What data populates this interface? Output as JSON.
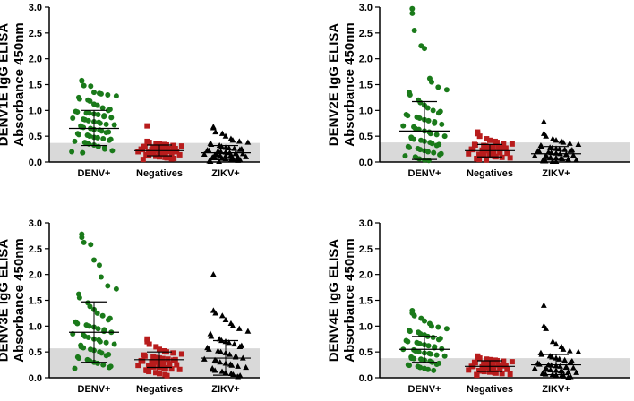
{
  "figure": {
    "panels_note": "Four dot plots: DENV1E-DENV4E IgG ELISA absorbance by group"
  },
  "colors": {
    "DENV+": "#1a7a1a",
    "Negatives": "#b81c1c",
    "ZIKV+": "#000000",
    "cutoff_band": "#d9d9d9"
  },
  "chart_data": [
    {
      "type": "scatter",
      "title": "",
      "ylabel": [
        "DENV1E IgG ELISA",
        "Absorbance 450nm"
      ],
      "ylim": [
        0,
        3.0
      ],
      "yticks": [
        "0.0",
        "0.5",
        "1.0",
        "1.5",
        "2.0",
        "2.5",
        "3.0"
      ],
      "categories": [
        "DENV+",
        "Negatives",
        "ZIKV+"
      ],
      "cutoff": 0.37,
      "series": [
        {
          "name": "DENV+",
          "marker": "circle",
          "mean": 0.65,
          "sd_upper": 1.0,
          "sd_lower": 0.32,
          "values": [
            1.58,
            1.57,
            1.48,
            1.47,
            1.35,
            1.33,
            1.32,
            1.3,
            1.28,
            1.25,
            1.22,
            1.2,
            1.18,
            1.12,
            1.1,
            1.05,
            1.02,
            1.0,
            0.98,
            0.97,
            0.95,
            0.95,
            0.93,
            0.92,
            0.9,
            0.88,
            0.86,
            0.85,
            0.83,
            0.82,
            0.8,
            0.78,
            0.77,
            0.75,
            0.73,
            0.72,
            0.7,
            0.68,
            0.67,
            0.65,
            0.63,
            0.62,
            0.6,
            0.58,
            0.57,
            0.55,
            0.53,
            0.52,
            0.5,
            0.48,
            0.47,
            0.45,
            0.44,
            0.42,
            0.4,
            0.38,
            0.37,
            0.35,
            0.33,
            0.3,
            0.28,
            0.25,
            0.22,
            0.2,
            0.18
          ]
        },
        {
          "name": "Negatives",
          "marker": "square",
          "mean": 0.22,
          "sd_upper": 0.33,
          "sd_lower": 0.12,
          "values": [
            0.7,
            0.4,
            0.38,
            0.36,
            0.35,
            0.34,
            0.33,
            0.32,
            0.31,
            0.3,
            0.3,
            0.29,
            0.28,
            0.28,
            0.27,
            0.26,
            0.26,
            0.25,
            0.25,
            0.24,
            0.24,
            0.23,
            0.22,
            0.22,
            0.21,
            0.21,
            0.2,
            0.2,
            0.19,
            0.18,
            0.18,
            0.17,
            0.16,
            0.16,
            0.15,
            0.14,
            0.14,
            0.13,
            0.12,
            0.11,
            0.1,
            0.09,
            0.08,
            0.07,
            0.06,
            0.05
          ]
        },
        {
          "name": "ZIKV+",
          "marker": "triangle",
          "mean": 0.18,
          "sd_upper": 0.32,
          "sd_lower": 0.05,
          "values": [
            0.68,
            0.66,
            0.58,
            0.55,
            0.5,
            0.45,
            0.42,
            0.4,
            0.38,
            0.36,
            0.34,
            0.32,
            0.3,
            0.28,
            0.27,
            0.26,
            0.25,
            0.24,
            0.23,
            0.22,
            0.21,
            0.2,
            0.19,
            0.18,
            0.17,
            0.16,
            0.16,
            0.15,
            0.14,
            0.14,
            0.13,
            0.12,
            0.12,
            0.11,
            0.1,
            0.1,
            0.09,
            0.08,
            0.08,
            0.07,
            0.06,
            0.05,
            0.05,
            0.04,
            0.03,
            0.02,
            0.01,
            0.01
          ]
        }
      ]
    },
    {
      "type": "scatter",
      "title": "",
      "ylabel": [
        "DENV2E IgG ELISA",
        "Absorbance 450nm"
      ],
      "ylim": [
        0,
        3.0
      ],
      "yticks": [
        "0.0",
        "0.5",
        "1.0",
        "1.5",
        "2.0",
        "2.5",
        "3.0"
      ],
      "categories": [
        "DENV+",
        "Negatives",
        "ZIKV+"
      ],
      "cutoff": 0.38,
      "series": [
        {
          "name": "DENV+",
          "marker": "circle",
          "mean": 0.6,
          "sd_upper": 1.17,
          "sd_lower": 0.05,
          "values": [
            2.97,
            2.88,
            2.55,
            2.25,
            2.2,
            1.62,
            1.55,
            1.45,
            1.4,
            1.35,
            1.3,
            1.2,
            1.15,
            1.1,
            1.05,
            1.0,
            0.98,
            0.95,
            0.92,
            0.9,
            0.87,
            0.85,
            0.82,
            0.8,
            0.78,
            0.75,
            0.73,
            0.7,
            0.68,
            0.65,
            0.63,
            0.6,
            0.58,
            0.55,
            0.53,
            0.5,
            0.48,
            0.46,
            0.44,
            0.42,
            0.4,
            0.38,
            0.36,
            0.34,
            0.32,
            0.3,
            0.28,
            0.26,
            0.24,
            0.22,
            0.2,
            0.18,
            0.16,
            0.14,
            0.12,
            0.1,
            0.08,
            0.06,
            0.04,
            0.03
          ]
        },
        {
          "name": "Negatives",
          "marker": "square",
          "mean": 0.22,
          "sd_upper": 0.34,
          "sd_lower": 0.1,
          "values": [
            0.58,
            0.55,
            0.5,
            0.45,
            0.42,
            0.4,
            0.38,
            0.36,
            0.35,
            0.34,
            0.33,
            0.32,
            0.31,
            0.3,
            0.29,
            0.28,
            0.27,
            0.26,
            0.25,
            0.24,
            0.23,
            0.22,
            0.21,
            0.2,
            0.19,
            0.18,
            0.17,
            0.16,
            0.15,
            0.14,
            0.13,
            0.12,
            0.11,
            0.1,
            0.09,
            0.08,
            0.07,
            0.06,
            0.05,
            0.04
          ]
        },
        {
          "name": "ZIKV+",
          "marker": "triangle",
          "mean": 0.16,
          "sd_upper": 0.3,
          "sd_lower": 0.04,
          "values": [
            0.78,
            0.55,
            0.5,
            0.45,
            0.42,
            0.4,
            0.38,
            0.36,
            0.34,
            0.32,
            0.3,
            0.28,
            0.27,
            0.26,
            0.25,
            0.24,
            0.23,
            0.22,
            0.21,
            0.2,
            0.19,
            0.18,
            0.17,
            0.16,
            0.15,
            0.14,
            0.13,
            0.12,
            0.11,
            0.1,
            0.09,
            0.08,
            0.07,
            0.06,
            0.05,
            0.04,
            0.03,
            0.02,
            0.02,
            0.01,
            0.01
          ]
        }
      ]
    },
    {
      "type": "scatter",
      "title": "",
      "ylabel": [
        "DENV3E IgG ELISA",
        "Absorbance 450nm"
      ],
      "ylim": [
        0,
        3.0
      ],
      "yticks": [
        "0.0",
        "0.5",
        "1.0",
        "1.5",
        "2.0",
        "2.5",
        "3.0"
      ],
      "categories": [
        "DENV+",
        "Negatives",
        "ZIKV+"
      ],
      "cutoff": 0.57,
      "series": [
        {
          "name": "DENV+",
          "marker": "circle",
          "mean": 0.88,
          "sd_upper": 1.47,
          "sd_lower": 0.3,
          "values": [
            2.78,
            2.72,
            2.62,
            2.58,
            2.28,
            2.18,
            1.95,
            1.78,
            1.72,
            1.62,
            1.55,
            1.45,
            1.38,
            1.32,
            1.25,
            1.2,
            1.15,
            1.12,
            1.08,
            1.05,
            1.02,
            1.0,
            0.98,
            0.95,
            0.93,
            0.9,
            0.88,
            0.85,
            0.83,
            0.8,
            0.78,
            0.75,
            0.73,
            0.7,
            0.68,
            0.65,
            0.63,
            0.6,
            0.58,
            0.55,
            0.53,
            0.5,
            0.48,
            0.45,
            0.43,
            0.4,
            0.38,
            0.35,
            0.33,
            0.3,
            0.28,
            0.25,
            0.22,
            0.2,
            0.18
          ]
        },
        {
          "name": "Negatives",
          "marker": "square",
          "mean": 0.35,
          "sd_upper": 0.5,
          "sd_lower": 0.2,
          "values": [
            0.75,
            0.7,
            0.65,
            0.6,
            0.55,
            0.52,
            0.5,
            0.48,
            0.46,
            0.44,
            0.42,
            0.4,
            0.39,
            0.38,
            0.37,
            0.36,
            0.35,
            0.34,
            0.33,
            0.32,
            0.31,
            0.3,
            0.29,
            0.28,
            0.27,
            0.26,
            0.25,
            0.24,
            0.23,
            0.22,
            0.21,
            0.2,
            0.19,
            0.18,
            0.17,
            0.16,
            0.15,
            0.14,
            0.12,
            0.1,
            0.08,
            0.06,
            0.04
          ]
        },
        {
          "name": "ZIKV+",
          "marker": "triangle",
          "mean": 0.38,
          "sd_upper": 0.72,
          "sd_lower": 0.05,
          "values": [
            2.0,
            1.3,
            1.25,
            1.2,
            1.12,
            1.05,
            1.0,
            0.95,
            0.9,
            0.85,
            0.8,
            0.75,
            0.72,
            0.7,
            0.68,
            0.65,
            0.62,
            0.6,
            0.58,
            0.55,
            0.52,
            0.5,
            0.48,
            0.45,
            0.42,
            0.4,
            0.38,
            0.36,
            0.34,
            0.32,
            0.3,
            0.28,
            0.26,
            0.24,
            0.22,
            0.2,
            0.18,
            0.16,
            0.14,
            0.12,
            0.1,
            0.08,
            0.06,
            0.04,
            0.02
          ]
        }
      ]
    },
    {
      "type": "scatter",
      "title": "",
      "ylabel": [
        "DENV4E IgG ELISA",
        "Absorbance 450nm"
      ],
      "ylim": [
        0,
        3.0
      ],
      "yticks": [
        "0.0",
        "0.5",
        "1.0",
        "1.5",
        "2.0",
        "2.5",
        "3.0"
      ],
      "categories": [
        "DENV+",
        "Negatives",
        "ZIKV+"
      ],
      "cutoff": 0.38,
      "series": [
        {
          "name": "DENV+",
          "marker": "circle",
          "mean": 0.55,
          "sd_upper": 0.8,
          "sd_lower": 0.3,
          "values": [
            1.3,
            1.25,
            1.2,
            1.15,
            1.1,
            1.05,
            1.0,
            0.98,
            0.95,
            0.92,
            0.9,
            0.88,
            0.85,
            0.83,
            0.8,
            0.78,
            0.76,
            0.74,
            0.72,
            0.7,
            0.68,
            0.66,
            0.64,
            0.62,
            0.6,
            0.58,
            0.56,
            0.55,
            0.54,
            0.52,
            0.5,
            0.48,
            0.47,
            0.46,
            0.44,
            0.42,
            0.4,
            0.38,
            0.37,
            0.36,
            0.34,
            0.32,
            0.3,
            0.28,
            0.26,
            0.25,
            0.24,
            0.22,
            0.2,
            0.18,
            0.16,
            0.14
          ]
        },
        {
          "name": "Negatives",
          "marker": "square",
          "mean": 0.22,
          "sd_upper": 0.33,
          "sd_lower": 0.12,
          "values": [
            0.42,
            0.4,
            0.38,
            0.36,
            0.35,
            0.34,
            0.33,
            0.32,
            0.31,
            0.3,
            0.29,
            0.28,
            0.27,
            0.26,
            0.25,
            0.25,
            0.24,
            0.23,
            0.22,
            0.22,
            0.21,
            0.2,
            0.2,
            0.19,
            0.18,
            0.17,
            0.16,
            0.15,
            0.14,
            0.13,
            0.12,
            0.11,
            0.1,
            0.09,
            0.08,
            0.07,
            0.06,
            0.05
          ]
        },
        {
          "name": "ZIKV+",
          "marker": "triangle",
          "mean": 0.25,
          "sd_upper": 0.45,
          "sd_lower": 0.06,
          "values": [
            1.4,
            1.0,
            0.95,
            0.7,
            0.65,
            0.6,
            0.55,
            0.52,
            0.5,
            0.48,
            0.45,
            0.42,
            0.4,
            0.38,
            0.36,
            0.34,
            0.32,
            0.3,
            0.28,
            0.26,
            0.25,
            0.24,
            0.23,
            0.22,
            0.21,
            0.2,
            0.19,
            0.18,
            0.17,
            0.16,
            0.15,
            0.14,
            0.13,
            0.12,
            0.11,
            0.1,
            0.09,
            0.08,
            0.07,
            0.06,
            0.05,
            0.04,
            0.03,
            0.02,
            0.01
          ]
        }
      ]
    }
  ]
}
